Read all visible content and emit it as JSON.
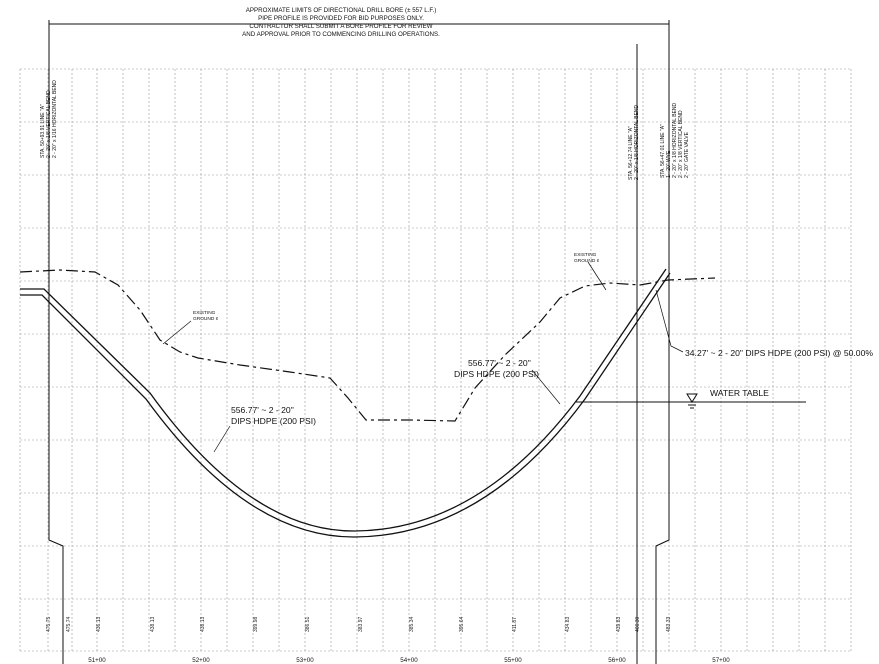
{
  "notes": {
    "bore_limits": [
      "APPROXIMATE LIMITS OF DIRECTIONAL DRILL BORE (± 557 L.F.)",
      "PIPE PROFILE IS PROVIDED FOR BID PURPOSES ONLY.",
      "CONTRACTOR SHALL SUBMIT A BORE PROFILE FOR REVIEW",
      "AND APPROVAL PRIOR TO COMMENCING DRILLING OPERATIONS."
    ]
  },
  "labels": {
    "existing_ground_left": [
      "EXISTING",
      "GROUND ¢"
    ],
    "existing_ground_right": [
      "EXISTING",
      "GROUND ¢"
    ],
    "pipe_left": [
      "556.77' ~ 2 - 20\"",
      "DIPS HDPE (200 PSI)"
    ],
    "pipe_center": [
      "556.77' ~ 2 - 20\"",
      "DIPS HDPE (200 PSI)"
    ],
    "pipe_right": "34.27' ~ 2 - 20\" DIPS HDPE (200 PSI) @ 50.00%",
    "water_table": "WATER TABLE"
  },
  "callouts": {
    "left": [
      "STA. 50+93.91 LINE \"A\"",
      "2 - 20\" x 1/8 VERTICAL BEND",
      "2 - 20\" x 1/16 HORIZONTAL BEND"
    ],
    "mid_right": [
      "STA. 56+12.74 LINE \"A\"",
      "2 - 20\" x 1/8 HORIZONTAL BEND"
    ],
    "right": [
      "STA. 56+47.01 LINE \"A\"",
      "1 - 20\" WYE",
      "2 - 20\" x 1/8 HORIZONTAL BEND",
      "2 - 20\" x 1/8 VERTICAL BEND",
      "2 - 20\" GATE VALVE"
    ]
  },
  "elevations": [
    "475.75",
    "475.74",
    "436.13",
    "438.13",
    "438.13",
    "399.98",
    "386.51",
    "383.97",
    "385.34",
    "395.64",
    "411.87",
    "434.83",
    "439.83",
    "466.30",
    "483.33"
  ],
  "stations": [
    "51+00",
    "52+00",
    "53+00",
    "54+00",
    "55+00",
    "56+00",
    "57+00"
  ]
}
